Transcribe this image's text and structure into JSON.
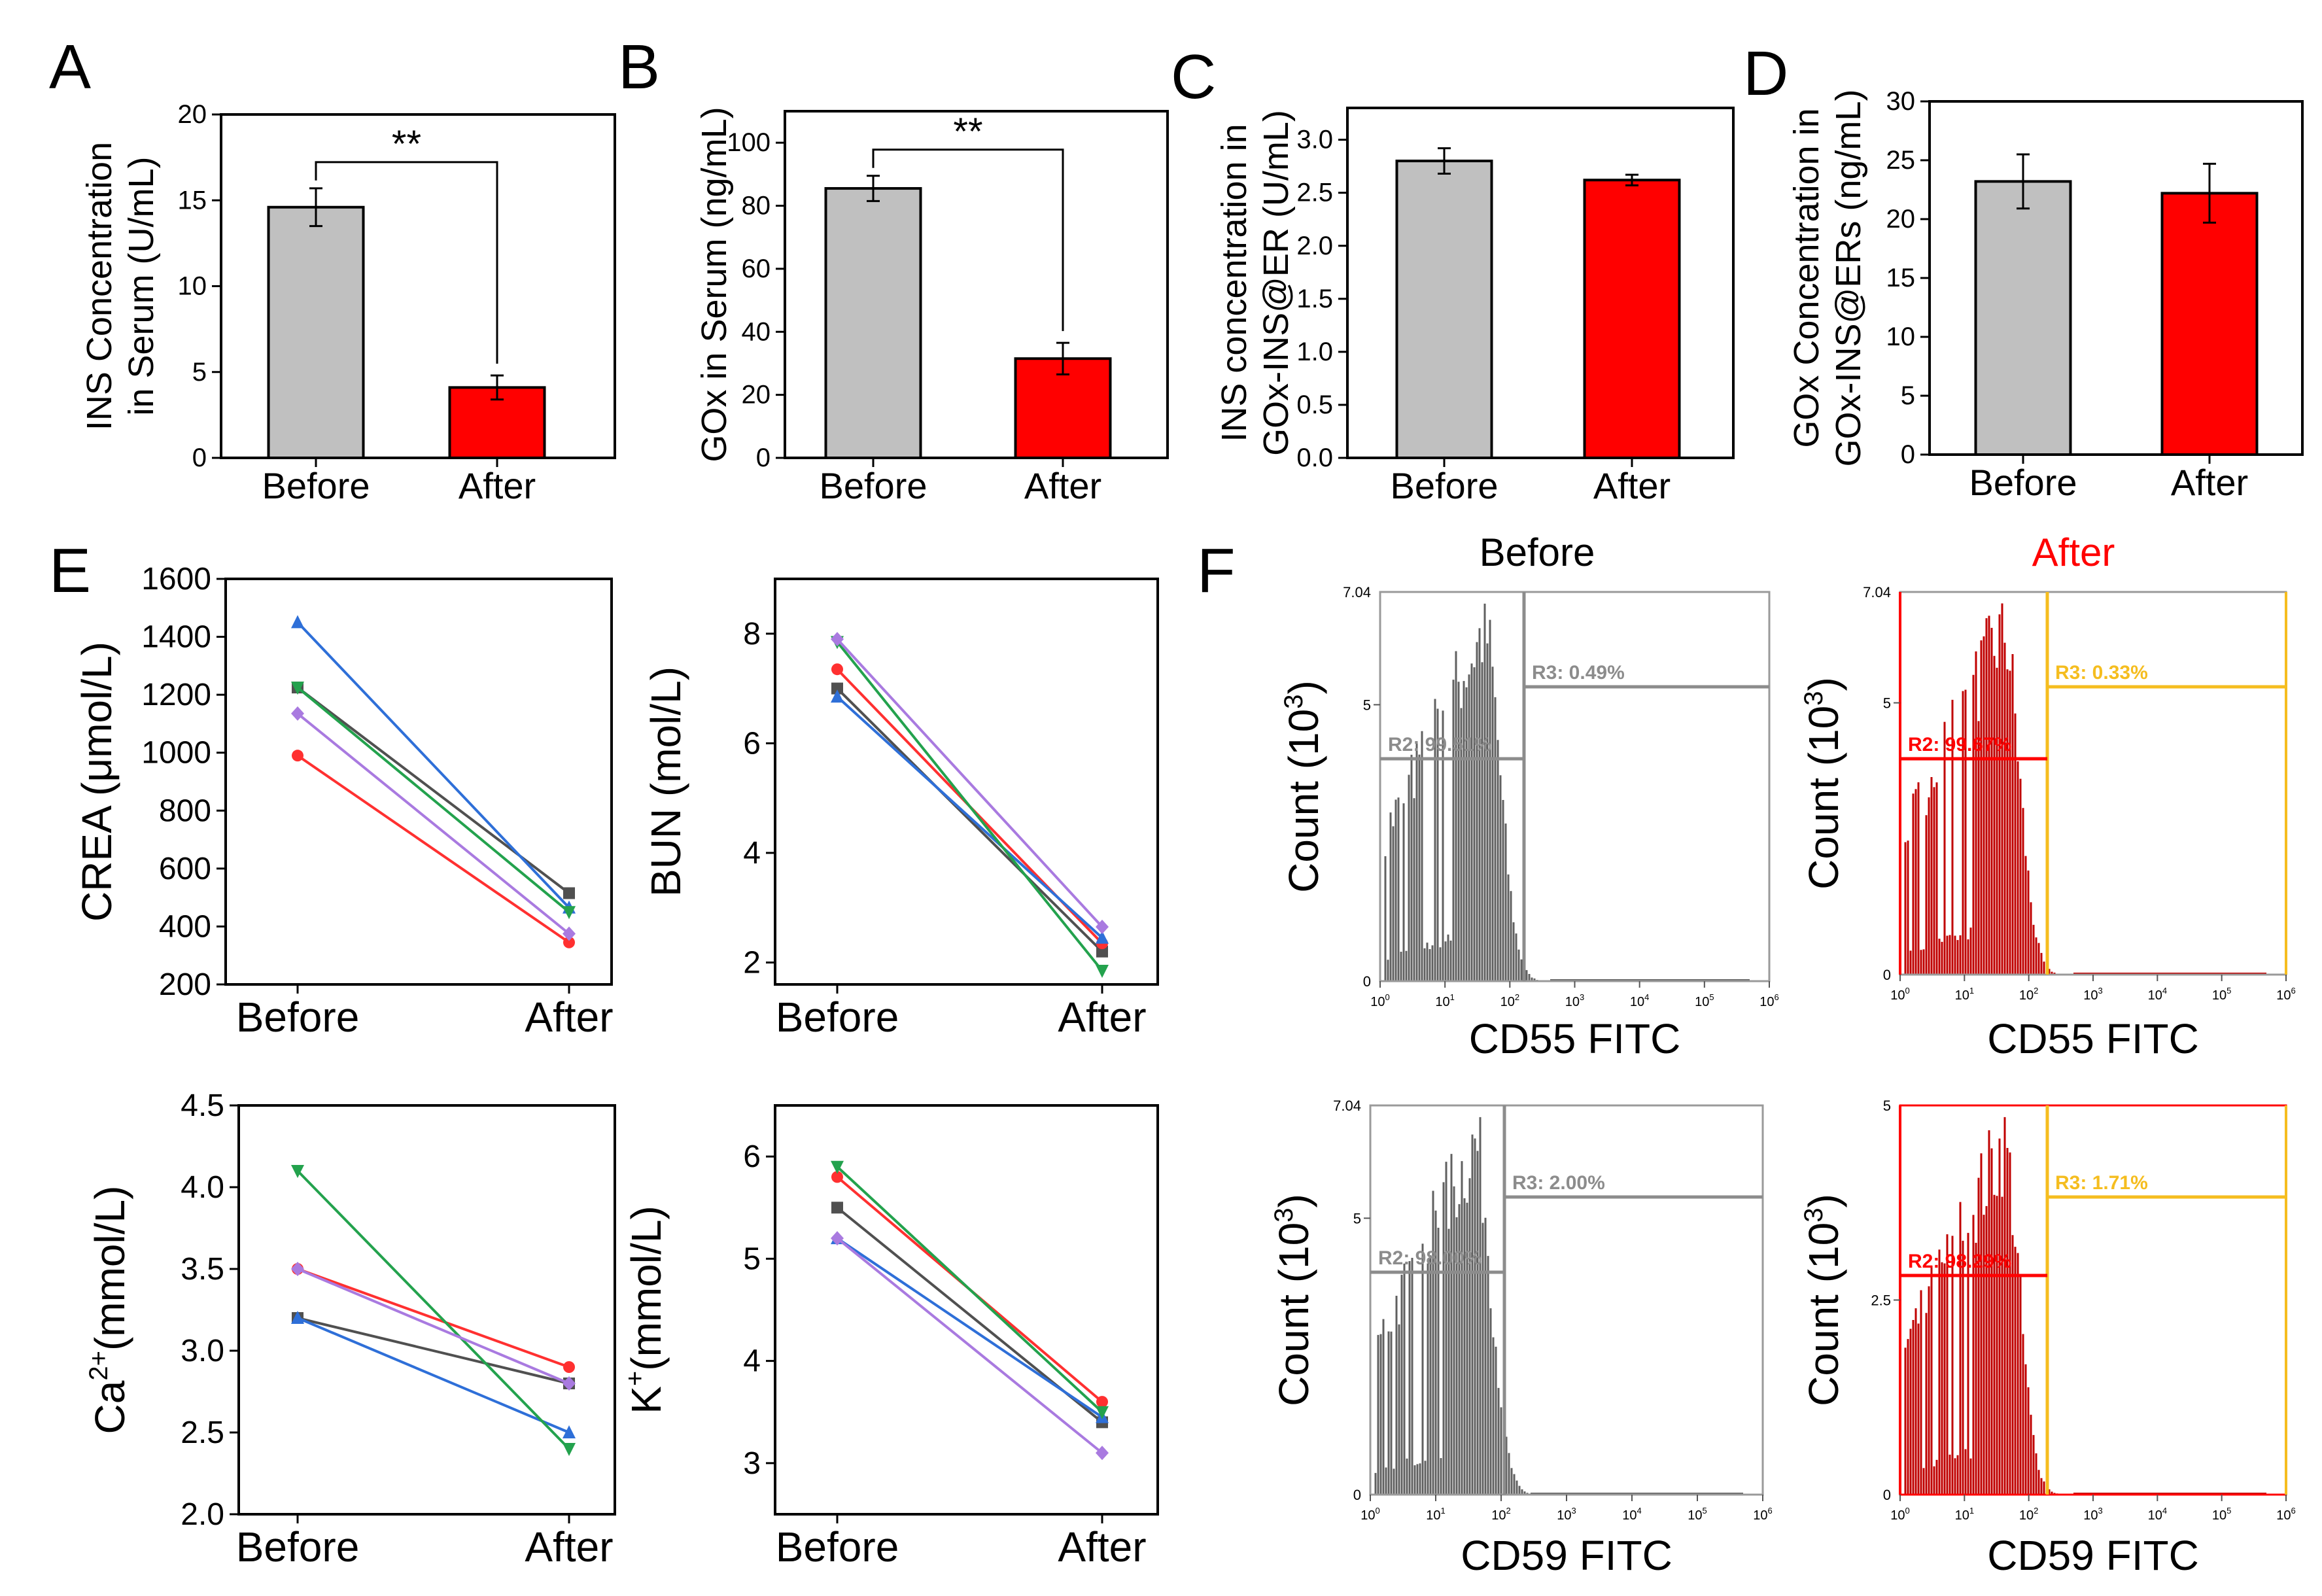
{
  "panel_letters": {
    "A": "A",
    "B": "B",
    "C": "C",
    "D": "D",
    "E": "E",
    "F": "F"
  },
  "colors": {
    "before": "#c0c0c0",
    "after": "#ff0000",
    "axis": "#000000",
    "series": [
      "#505050",
      "#ff3030",
      "#2e6fd8",
      "#23a24d",
      "#a97ae0"
    ],
    "flow_before": "#606060",
    "flow_after": "#c00000",
    "gate_gray": "#8c8c8c",
    "gate_gold": "#f5bd1f",
    "after_title": "#ff0000"
  },
  "chart_data": [
    {
      "id": "A",
      "type": "bar",
      "categories": [
        "Before",
        "After"
      ],
      "values": [
        14.6,
        4.1
      ],
      "errors": [
        1.1,
        0.7
      ],
      "ylabel_lines": [
        "INS Concentration",
        "in Serum (U/mL)"
      ],
      "ylim": [
        0,
        20
      ],
      "yticks": [
        0,
        5,
        10,
        15,
        20
      ],
      "significance": "**"
    },
    {
      "id": "B",
      "type": "bar",
      "categories": [
        "Before",
        "After"
      ],
      "values": [
        85.5,
        31.5
      ],
      "errors": [
        4.0,
        5.0
      ],
      "ylabel_lines": [
        "GOx in Serum (ng/mL)"
      ],
      "ylim": [
        0,
        110
      ],
      "yticks": [
        0,
        20,
        40,
        60,
        80,
        100
      ],
      "significance": "**"
    },
    {
      "id": "C",
      "type": "bar",
      "categories": [
        "Before",
        "After"
      ],
      "values": [
        2.8,
        2.62
      ],
      "errors": [
        0.12,
        0.05
      ],
      "ylabel_lines": [
        "INS concentration in",
        "GOx-INS@ER (U/mL)"
      ],
      "ylim": [
        0,
        3.3
      ],
      "yticks": [
        "0.0",
        "0.5",
        "1.0",
        "1.5",
        "2.0",
        "2.5",
        "3.0"
      ]
    },
    {
      "id": "D",
      "type": "bar",
      "categories": [
        "Before",
        "After"
      ],
      "values": [
        23.2,
        22.2
      ],
      "errors": [
        2.3,
        2.5
      ],
      "ylabel_lines": [
        "GOx Concentration in",
        "GOx-INS@ERs (ng/mL)"
      ],
      "ylim": [
        0,
        30
      ],
      "yticks": [
        0,
        5,
        10,
        15,
        20,
        25,
        30
      ]
    },
    {
      "id": "E1",
      "type": "line",
      "categories": [
        "Before",
        "After"
      ],
      "ylabel": "CREA (μmol/L)",
      "ylim": [
        200,
        1600
      ],
      "yticks": [
        200,
        400,
        600,
        800,
        1000,
        1200,
        1400,
        1600
      ],
      "series": [
        {
          "values": [
            1225,
            515
          ]
        },
        {
          "values": [
            990,
            345
          ]
        },
        {
          "values": [
            1450,
            465
          ]
        },
        {
          "values": [
            1225,
            450
          ]
        },
        {
          "values": [
            1135,
            375
          ]
        }
      ]
    },
    {
      "id": "E2",
      "type": "line",
      "categories": [
        "Before",
        "After"
      ],
      "ylabel": "BUN (mol/L)",
      "ylim": [
        1.6,
        9
      ],
      "yticks": [
        2,
        4,
        6,
        8
      ],
      "series": [
        {
          "values": [
            7.0,
            2.2
          ]
        },
        {
          "values": [
            7.35,
            2.35
          ]
        },
        {
          "values": [
            6.85,
            2.45
          ]
        },
        {
          "values": [
            7.85,
            1.85
          ]
        },
        {
          "values": [
            7.9,
            2.65
          ]
        }
      ]
    },
    {
      "id": "E3",
      "type": "line",
      "categories": [
        "Before",
        "After"
      ],
      "ylabel_main": "Ca",
      "ylabel_sup": "2+",
      "ylabel_rest": "(mmol/L)",
      "ylim": [
        2.0,
        4.5
      ],
      "yticks": [
        "2.0",
        "2.5",
        "3.0",
        "3.5",
        "4.0",
        "4.5"
      ],
      "series": [
        {
          "values": [
            3.2,
            2.8
          ]
        },
        {
          "values": [
            3.5,
            2.9
          ]
        },
        {
          "values": [
            3.2,
            2.5
          ]
        },
        {
          "values": [
            4.1,
            2.4
          ]
        },
        {
          "values": [
            3.5,
            2.8
          ]
        }
      ]
    },
    {
      "id": "E4",
      "type": "line",
      "categories": [
        "Before",
        "After"
      ],
      "ylabel_main": "K",
      "ylabel_sup": "+",
      "ylabel_rest": "(mmol/L)",
      "ylim": [
        2.5,
        6.5
      ],
      "yticks": [
        3,
        4,
        5,
        6
      ],
      "series": [
        {
          "values": [
            5.5,
            3.4
          ]
        },
        {
          "values": [
            5.8,
            3.6
          ]
        },
        {
          "values": [
            5.2,
            3.45
          ]
        },
        {
          "values": [
            5.9,
            3.5
          ]
        },
        {
          "values": [
            5.2,
            3.1
          ]
        }
      ]
    }
  ],
  "flow": {
    "col_titles": [
      "Before",
      "After"
    ],
    "ylabel_main": "Count (10",
    "ylabel_sup": "3",
    "ylabel_end": ")",
    "x_tick_labels": [
      "10",
      "10",
      "10",
      "10",
      "10",
      "10",
      "10"
    ],
    "x_tick_exps": [
      "0",
      "1",
      "2",
      "3",
      "4",
      "5",
      "6"
    ],
    "plots": [
      {
        "xlabel": "CD55 FITC",
        "ytop": "7.04",
        "ymid": "5",
        "yzero": "0",
        "r3": "R3: 0.49%",
        "r2": "R2: 99.51%"
      },
      {
        "xlabel": "CD55 FITC",
        "ytop": "7.04",
        "ymid": "5",
        "yzero": "0",
        "r3": "R3: 0.33%",
        "r2": "R2: 99.67%"
      },
      {
        "xlabel": "CD59 FITC",
        "ytop": "7.04",
        "ymid": "5",
        "yzero": "0",
        "r3": "R3: 2.00%",
        "r2": "R2: 98.00%"
      },
      {
        "xlabel": "CD59 FITC",
        "ytop": "5",
        "ymid": "2.5",
        "yzero": "0",
        "r3": "R3: 1.71%",
        "r2": "R2: 98.29%"
      }
    ]
  }
}
